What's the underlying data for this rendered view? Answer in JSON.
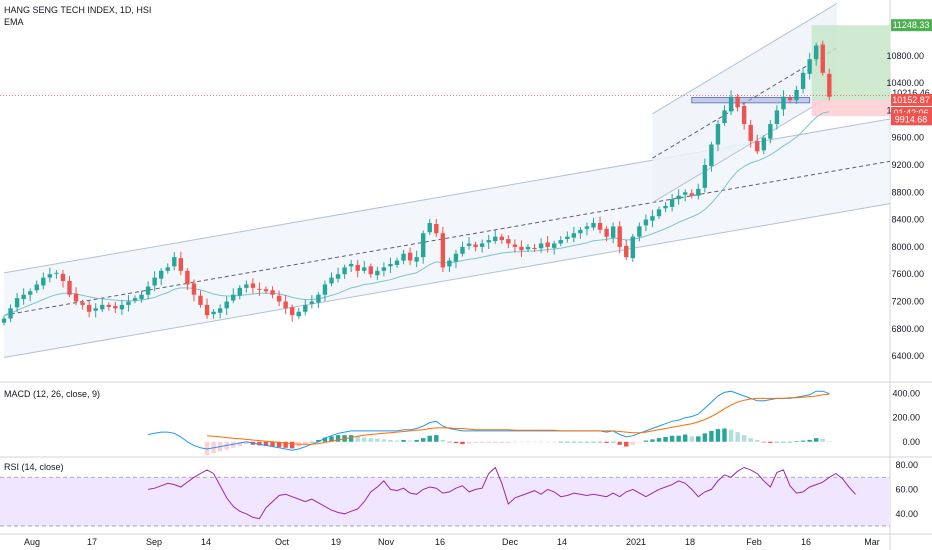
{
  "header": {
    "title": "HANG SENG TECH INDEX, 1D, HSI",
    "indicator": "EMA"
  },
  "macd_label": "MACD (12, 26, close, 9)",
  "rsi_label": "RSI (14, close)",
  "price_tags": {
    "target": "11248.33",
    "last": "10216.46",
    "entry": "10152.87",
    "countdown": "01:42:06",
    "stop": "9914.68"
  },
  "colors": {
    "up": "#26a69a",
    "down": "#ef5350",
    "ema": "#7ec4cf",
    "macd": "#2196f3",
    "signal": "#ff6d00",
    "rsi": "#9c27b0",
    "channel": "#b2c1d9",
    "rsi_band": "#f0e6ff",
    "profit": "#c8e6c9",
    "loss": "#ffcdd2"
  },
  "chart_data": [
    {
      "type": "candlestick",
      "title": "HANG SENG TECH INDEX, 1D, HSI",
      "x_ticks": [
        "Aug",
        "17",
        "Sep",
        "14",
        "Oct",
        "19",
        "Nov",
        "16",
        "Dec",
        "14",
        "2021",
        "18",
        "Feb",
        "16",
        "Mar"
      ],
      "y_ticks": [
        6400,
        6800,
        7200,
        7600,
        8000,
        8400,
        8800,
        9200,
        9600,
        10000,
        10400,
        10800
      ],
      "y_tick_labels": [
        "6400.00",
        "6800.00",
        "7200.00",
        "7600.00",
        "8000.00",
        "8400.00",
        "8800.00",
        "9200.00",
        "9600.00",
        "10000.00",
        "10400.00",
        "10800.00"
      ],
      "ylim": [
        6050,
        11500
      ],
      "closes": [
        6950,
        7100,
        7250,
        7300,
        7350,
        7450,
        7550,
        7600,
        7620,
        7500,
        7300,
        7200,
        7150,
        7050,
        7100,
        7150,
        7120,
        7100,
        7150,
        7200,
        7250,
        7300,
        7420,
        7550,
        7650,
        7700,
        7850,
        7650,
        7450,
        7300,
        7150,
        7000,
        7050,
        7100,
        7200,
        7300,
        7400,
        7450,
        7400,
        7380,
        7350,
        7300,
        7200,
        7100,
        7000,
        7050,
        7150,
        7200,
        7300,
        7450,
        7550,
        7600,
        7700,
        7750,
        7650,
        7700,
        7600,
        7650,
        7700,
        7750,
        7800,
        7900,
        7800,
        7850,
        8200,
        8350,
        8200,
        7700,
        7800,
        7900,
        8000,
        8050,
        8000,
        8050,
        8100,
        8150,
        8100,
        8050,
        8000,
        7950,
        8000,
        7980,
        8050,
        8000,
        8050,
        8100,
        8150,
        8200,
        8250,
        8300,
        8350,
        8250,
        8150,
        8300,
        8000,
        7850,
        8150,
        8300,
        8400,
        8450,
        8550,
        8600,
        8700,
        8750,
        8800,
        8750,
        8850,
        9200,
        9500,
        9800,
        10000,
        10200,
        10050,
        9800,
        9550,
        9400,
        9600,
        9800,
        10000,
        10200,
        10150,
        10300,
        10550,
        10750,
        10950,
        10550,
        10200
      ],
      "ema_20": [
        7000,
        7030,
        7070,
        7110,
        7150,
        7190,
        7230,
        7270,
        7300,
        7320,
        7320,
        7310,
        7290,
        7270,
        7250,
        7240,
        7230,
        7220,
        7210,
        7210,
        7210,
        7220,
        7240,
        7260,
        7300,
        7330,
        7380,
        7400,
        7400,
        7390,
        7370,
        7340,
        7310,
        7290,
        7280,
        7280,
        7290,
        7300,
        7310,
        7320,
        7320,
        7320,
        7310,
        7290,
        7260,
        7240,
        7230,
        7230,
        7240,
        7260,
        7290,
        7320,
        7360,
        7400,
        7420,
        7450,
        7460,
        7480,
        7500,
        7520,
        7550,
        7580,
        7600,
        7620,
        7680,
        7740,
        7780,
        7770,
        7770,
        7780,
        7800,
        7820,
        7830,
        7850,
        7870,
        7890,
        7910,
        7920,
        7930,
        7930,
        7940,
        7940,
        7950,
        7960,
        7970,
        7980,
        8000,
        8020,
        8040,
        8060,
        8090,
        8100,
        8110,
        8130,
        8120,
        8100,
        8110,
        8130,
        8160,
        8190,
        8230,
        8270,
        8310,
        8360,
        8400,
        8440,
        8480,
        8550,
        8640,
        8750,
        8870,
        9000,
        9110,
        9180,
        9230,
        9260,
        9300,
        9350,
        9410,
        9480,
        9540,
        9610,
        9700,
        9800,
        9900,
        9960,
        9980
      ],
      "channel_mid_line": [
        [
          0,
          7000
        ],
        [
          126,
          9100
        ]
      ],
      "up_channel_line": [
        [
          99,
          9300
        ],
        [
          126,
          10850
        ]
      ],
      "trade_levels": {
        "target": 11248.33,
        "entry": 10152.87,
        "stop": 9914.68,
        "last": 10216.46
      }
    },
    {
      "type": "macd",
      "title": "MACD (12, 26, close, 9)",
      "y_ticks": [
        0,
        200,
        400
      ],
      "y_tick_labels": [
        "0.00",
        "200.00",
        "400.00"
      ],
      "ylim": [
        -110,
        480
      ],
      "macd_line": [
        null,
        null,
        null,
        null,
        null,
        null,
        null,
        null,
        null,
        null,
        null,
        null,
        null,
        null,
        null,
        null,
        null,
        null,
        null,
        null,
        null,
        null,
        60,
        70,
        80,
        80,
        70,
        40,
        0,
        -30,
        -50,
        -60,
        -50,
        -40,
        -30,
        -20,
        -10,
        0,
        -10,
        -20,
        -30,
        -40,
        -50,
        -60,
        -70,
        -60,
        -40,
        -20,
        0,
        30,
        50,
        70,
        80,
        90,
        90,
        90,
        90,
        90,
        90,
        90,
        90,
        100,
        100,
        110,
        130,
        160,
        170,
        130,
        110,
        100,
        90,
        90,
        90,
        90,
        90,
        90,
        90,
        90,
        90,
        90,
        90,
        90,
        90,
        90,
        90,
        90,
        90,
        90,
        90,
        90,
        90,
        90,
        80,
        90,
        60,
        40,
        50,
        70,
        90,
        110,
        130,
        150,
        170,
        180,
        200,
        210,
        230,
        280,
        330,
        380,
        410,
        420,
        400,
        380,
        360,
        340,
        340,
        350,
        360,
        360,
        360,
        370,
        380,
        390,
        420,
        420,
        400
      ],
      "signal_line": [
        null,
        null,
        null,
        null,
        null,
        null,
        null,
        null,
        null,
        null,
        null,
        null,
        null,
        null,
        null,
        null,
        null,
        null,
        null,
        null,
        null,
        null,
        null,
        null,
        null,
        null,
        null,
        null,
        null,
        null,
        null,
        50,
        45,
        40,
        35,
        30,
        25,
        20,
        15,
        10,
        5,
        0,
        -5,
        -10,
        -15,
        -20,
        -20,
        -20,
        -15,
        -5,
        5,
        15,
        25,
        35,
        45,
        55,
        60,
        65,
        70,
        75,
        80,
        85,
        90,
        95,
        100,
        110,
        115,
        115,
        115,
        110,
        110,
        105,
        100,
        100,
        100,
        100,
        100,
        100,
        95,
        95,
        95,
        95,
        95,
        95,
        95,
        90,
        90,
        90,
        90,
        90,
        90,
        90,
        90,
        90,
        85,
        80,
        75,
        75,
        80,
        90,
        100,
        110,
        120,
        130,
        140,
        150,
        165,
        185,
        210,
        240,
        275,
        305,
        330,
        345,
        355,
        360,
        360,
        360,
        360,
        360,
        365,
        365,
        370,
        375,
        380,
        390,
        395
      ],
      "histogram": [
        null,
        null,
        null,
        null,
        null,
        null,
        null,
        null,
        null,
        null,
        null,
        null,
        null,
        null,
        null,
        null,
        null,
        null,
        null,
        null,
        null,
        null,
        null,
        null,
        null,
        null,
        null,
        null,
        null,
        null,
        null,
        -110,
        -95,
        -80,
        -65,
        -50,
        -35,
        -20,
        -25,
        -30,
        -35,
        -40,
        -45,
        -50,
        -55,
        -40,
        -20,
        0,
        15,
        35,
        45,
        55,
        55,
        55,
        45,
        35,
        30,
        25,
        20,
        15,
        10,
        15,
        10,
        15,
        30,
        50,
        55,
        15,
        -5,
        -10,
        -20,
        -15,
        -10,
        -10,
        -10,
        -10,
        -10,
        -10,
        -5,
        -5,
        -5,
        -5,
        -5,
        -5,
        -5,
        0,
        0,
        0,
        0,
        0,
        0,
        0,
        -10,
        0,
        -25,
        -40,
        -25,
        -5,
        10,
        20,
        30,
        40,
        50,
        50,
        60,
        45,
        45,
        70,
        90,
        105,
        110,
        100,
        80,
        55,
        30,
        15,
        -5,
        -10,
        0,
        0,
        0,
        5,
        10,
        15,
        30,
        25,
        5
      ]
    },
    {
      "type": "line",
      "title": "RSI (14, close)",
      "y_ticks": [
        40,
        60,
        80
      ],
      "y_tick_labels": [
        "40.00",
        "60.00",
        "80.00"
      ],
      "ylim": [
        25,
        85
      ],
      "band": [
        30,
        70
      ],
      "values": [
        null,
        null,
        null,
        null,
        null,
        null,
        null,
        null,
        null,
        null,
        null,
        null,
        null,
        null,
        null,
        null,
        null,
        null,
        null,
        null,
        null,
        null,
        60,
        61,
        63,
        65,
        64,
        62,
        66,
        70,
        73,
        76,
        73,
        63,
        53,
        46,
        42,
        40,
        37,
        36,
        45,
        50,
        55,
        56,
        54,
        52,
        50,
        52,
        49,
        46,
        43,
        41,
        40,
        42,
        44,
        50,
        58,
        62,
        67,
        60,
        59,
        61,
        57,
        56,
        60,
        62,
        61,
        57,
        58,
        61,
        63,
        58,
        60,
        61,
        73,
        78,
        65,
        48,
        53,
        55,
        57,
        59,
        56,
        60,
        58,
        54,
        55,
        57,
        56,
        55,
        56,
        55,
        54,
        57,
        54,
        58,
        60,
        57,
        54,
        57,
        60,
        62,
        64,
        67,
        65,
        60,
        54,
        58,
        60,
        67,
        72,
        70,
        75,
        78,
        76,
        73,
        67,
        62,
        74,
        76,
        63,
        57,
        58,
        62,
        64,
        66,
        70,
        73,
        69,
        62,
        56
      ]
    }
  ]
}
